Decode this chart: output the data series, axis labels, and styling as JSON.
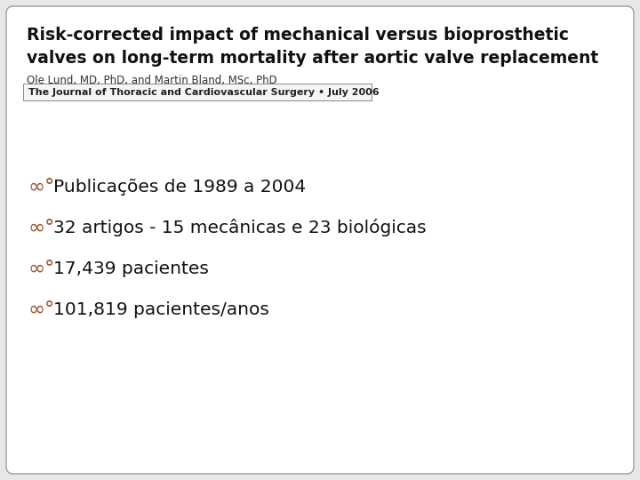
{
  "background_color": "#ffffff",
  "slide_background": "#e8e8e8",
  "border_color": "#aaaaaa",
  "title_line1": "Risk-corrected impact of mechanical versus bioprosthetic",
  "title_line2": "valves on long-term mortality after aortic valve replacement",
  "author": "Ole Lund, MD, PhD, and Martin Bland, MSc, PhD",
  "journal": "The Journal of Thoracic and Cardiovascular Surgery • July 2006",
  "bullet_color": "#a0522d",
  "bullet_text_color": "#111111",
  "bullets": [
    "Publicações de 1989 a 2004",
    "32 artigos - 15 mecânicas e 23 biológicas",
    "17,439 pacientes",
    "101,819 pacientes/anos"
  ],
  "title_fontsize": 13.5,
  "author_fontsize": 8.5,
  "journal_fontsize": 8.0,
  "bullet_fontsize": 14.5,
  "bullet_symbol": "∞∂"
}
